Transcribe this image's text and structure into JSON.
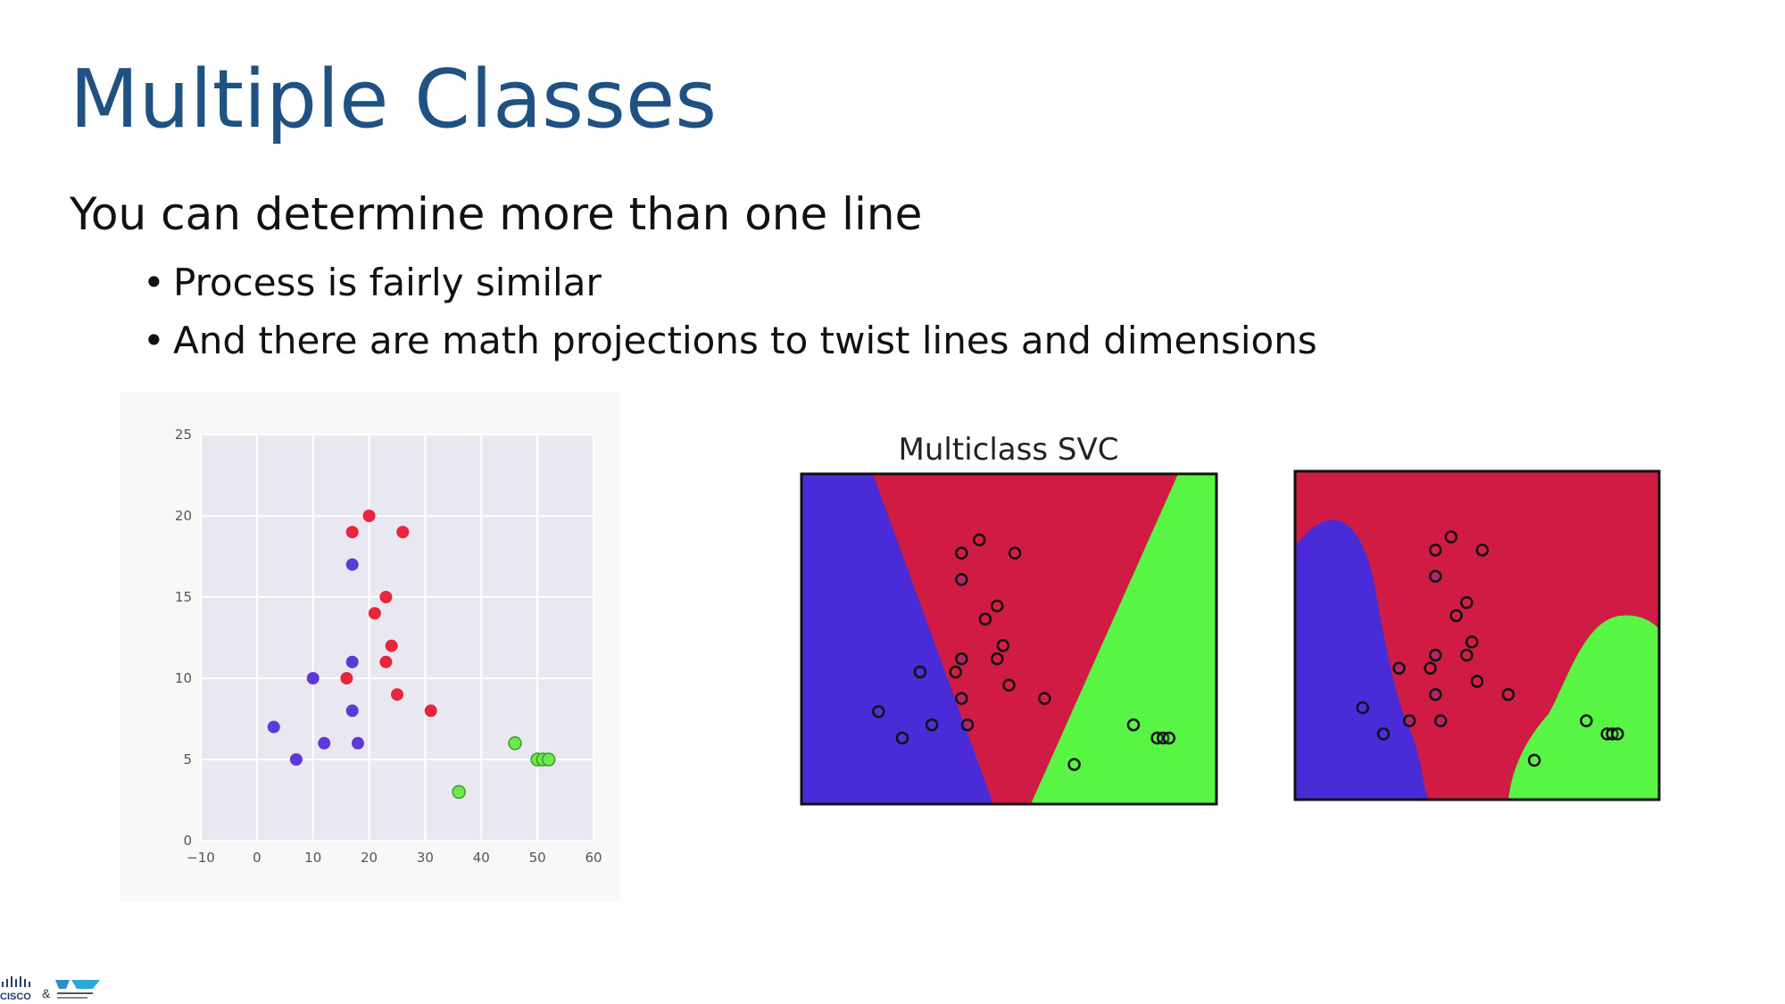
{
  "slide": {
    "title": "Multiple Classes",
    "lead": "You can determine more than one line",
    "bullets": [
      "Process is fairly similar",
      "And there are math projections to twist lines and dimensions"
    ]
  },
  "logos": {
    "brand1": "CISCO",
    "amp": "&"
  },
  "colors": {
    "title": "#1f5282",
    "class_red": "#e8253b",
    "class_blue": "#5a3bd8",
    "class_green": "#6cea4a",
    "region_red": "#d01c45",
    "region_blue": "#4a2bd8",
    "region_green": "#59f545",
    "plot_bg": "#e9e8f1"
  },
  "chart_data": [
    {
      "type": "scatter",
      "title": "",
      "xlabel": "",
      "ylabel": "",
      "xlim": [
        -10,
        60
      ],
      "ylim": [
        0,
        25
      ],
      "xticks": [
        -10,
        0,
        10,
        20,
        30,
        40,
        50,
        60
      ],
      "yticks": [
        0,
        5,
        10,
        15,
        20,
        25
      ],
      "xtick_labels": [
        "−10",
        "0",
        "10",
        "20",
        "30",
        "40",
        "50",
        "60"
      ],
      "ytick_labels": [
        "0",
        "5",
        "10",
        "15",
        "20",
        "25"
      ],
      "grid": true,
      "points": [
        {
          "x": 17,
          "y": 19,
          "class": "red"
        },
        {
          "x": 20,
          "y": 20,
          "class": "red"
        },
        {
          "x": 26,
          "y": 19,
          "class": "red"
        },
        {
          "x": 23,
          "y": 15,
          "class": "red"
        },
        {
          "x": 21,
          "y": 14,
          "class": "red"
        },
        {
          "x": 24,
          "y": 12,
          "class": "red"
        },
        {
          "x": 23,
          "y": 11,
          "class": "red"
        },
        {
          "x": 16,
          "y": 10,
          "class": "red"
        },
        {
          "x": 25,
          "y": 9,
          "class": "red"
        },
        {
          "x": 31,
          "y": 8,
          "class": "red"
        },
        {
          "x": 17,
          "y": 17,
          "class": "blue"
        },
        {
          "x": 17,
          "y": 11,
          "class": "blue"
        },
        {
          "x": 10,
          "y": 10,
          "class": "blue"
        },
        {
          "x": 17,
          "y": 8,
          "class": "blue"
        },
        {
          "x": 3,
          "y": 7,
          "class": "blue"
        },
        {
          "x": 12,
          "y": 6,
          "class": "blue"
        },
        {
          "x": 18,
          "y": 6,
          "class": "blue"
        },
        {
          "x": 7,
          "y": 5,
          "class": "blue"
        },
        {
          "x": 46,
          "y": 6,
          "class": "green"
        },
        {
          "x": 36,
          "y": 3,
          "class": "green"
        },
        {
          "x": 50,
          "y": 5,
          "class": "green"
        },
        {
          "x": 51,
          "y": 5,
          "class": "green"
        },
        {
          "x": 52,
          "y": 5,
          "class": "green"
        }
      ]
    },
    {
      "type": "scatter",
      "title": "Multiclass SVC",
      "model": "linear decision regions",
      "xlim": [
        -10,
        60
      ],
      "ylim": [
        0,
        25
      ],
      "axes_ticks": false,
      "points_same_as_first": true
    },
    {
      "type": "scatter",
      "title": "",
      "model": "non-linear decision regions",
      "xlim": [
        -10,
        60
      ],
      "ylim": [
        0,
        25
      ],
      "axes_ticks": false,
      "points_same_as_first": true
    }
  ]
}
